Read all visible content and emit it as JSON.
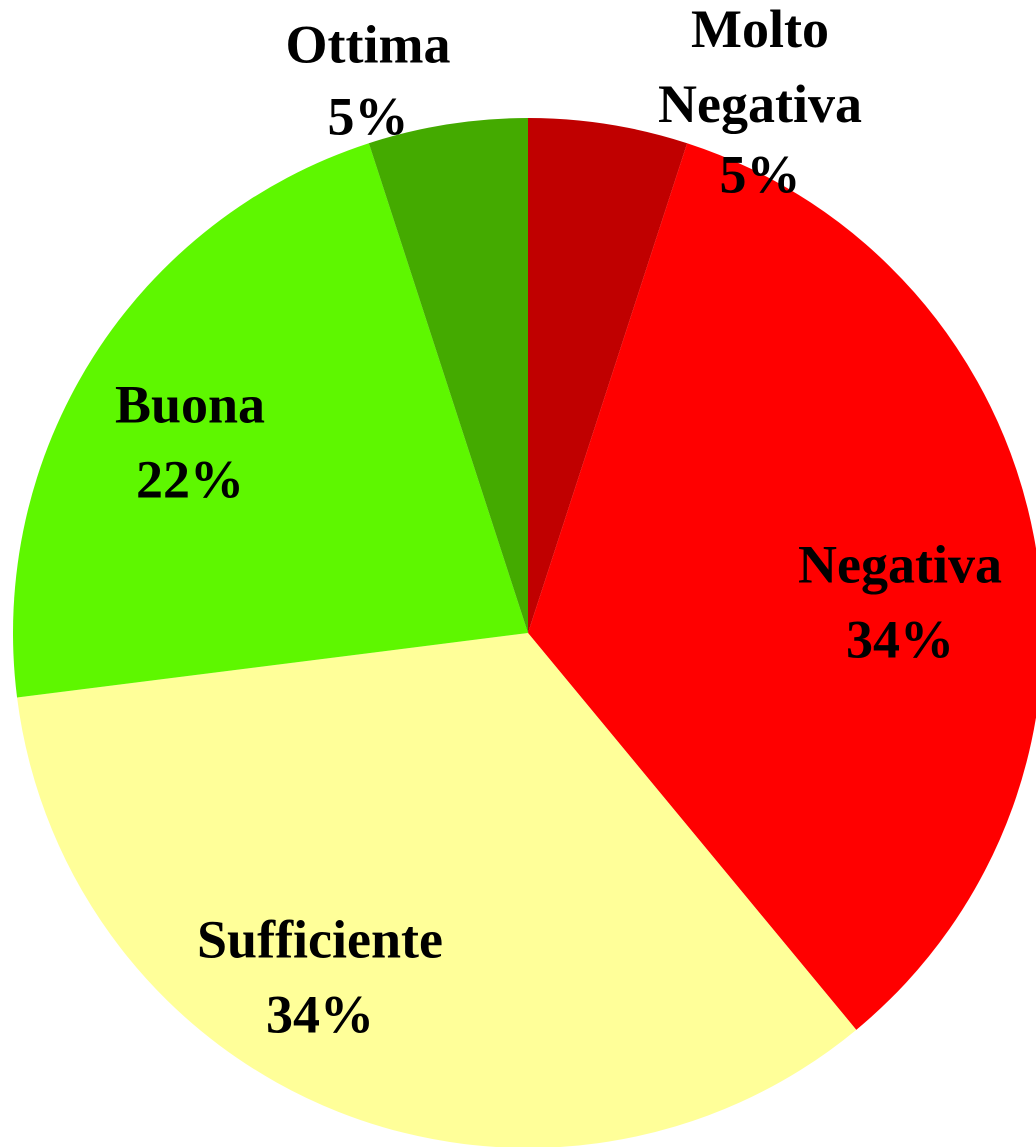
{
  "chart_data": {
    "type": "pie",
    "categories": [
      "Molto Negativa",
      "Negativa",
      "Sufficiente",
      "Buona",
      "Ottima"
    ],
    "values": [
      5,
      34,
      34,
      22,
      5
    ],
    "value_labels": [
      "5%",
      "34%",
      "34%",
      "22%",
      "5%"
    ],
    "colors": [
      "#c00000",
      "#ff0000",
      "#ffff99",
      "#5ef700",
      "#44aa00"
    ]
  }
}
